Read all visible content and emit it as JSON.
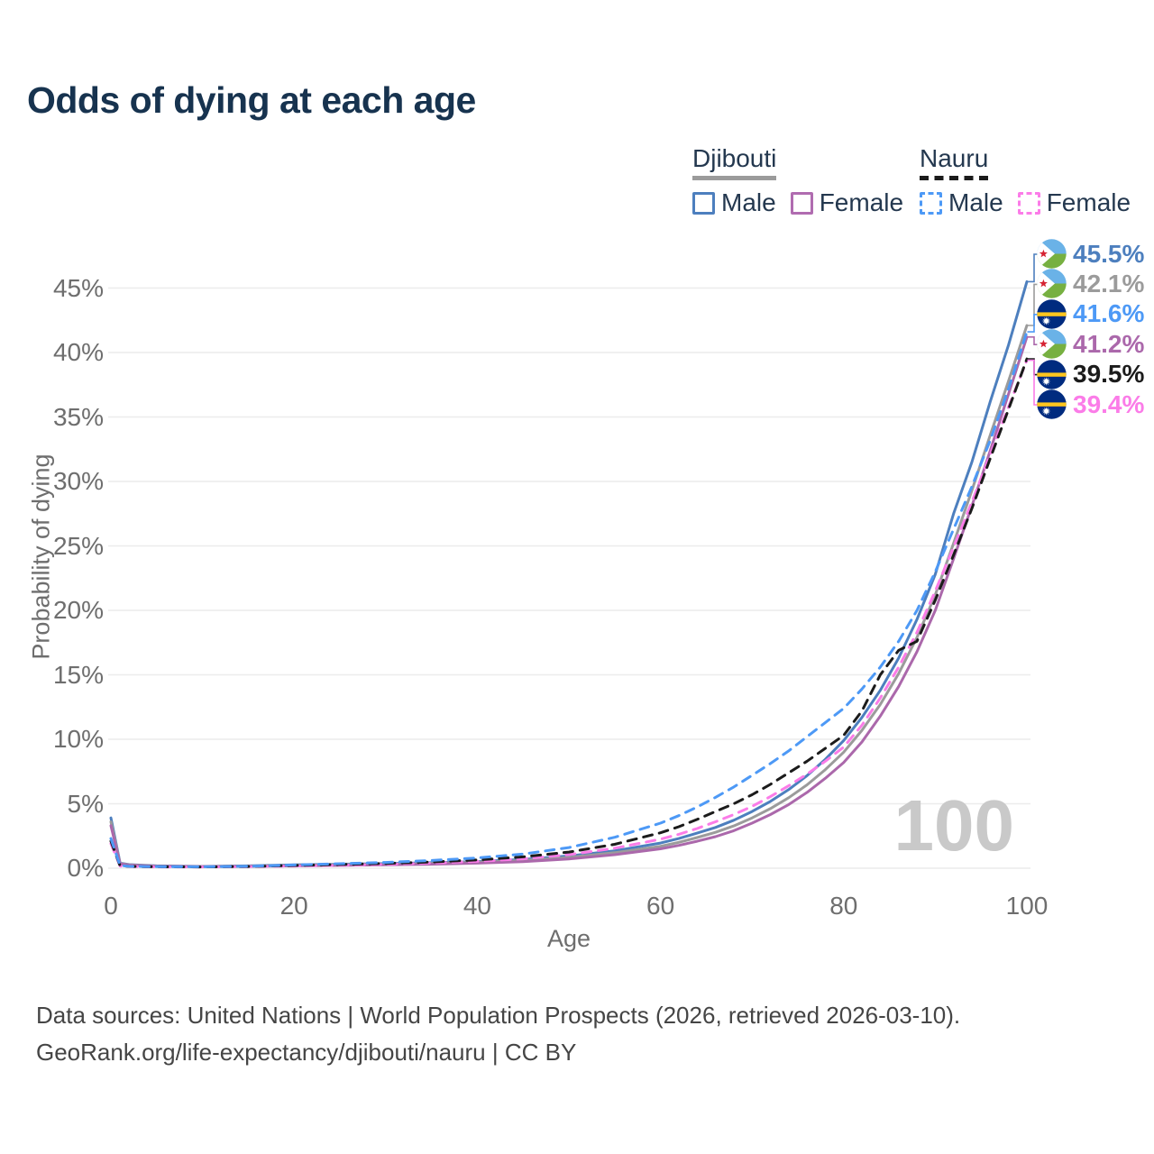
{
  "title": "Odds of dying at each age",
  "watermark": "100",
  "legend": {
    "groups": [
      {
        "label": "Djibouti",
        "line_style": "solid",
        "underline_color": "#9b9b9b",
        "items": [
          {
            "label": "Male",
            "color": "#4d7fbe",
            "dashed": false
          },
          {
            "label": "Female",
            "color": "#b06cb0",
            "dashed": false
          }
        ]
      },
      {
        "label": "Nauru",
        "line_style": "dashed",
        "underline_color": "#1b1b1b",
        "items": [
          {
            "label": "Male",
            "color": "#4d99f6",
            "dashed": true
          },
          {
            "label": "Female",
            "color": "#fb7ce8",
            "dashed": true
          }
        ]
      }
    ]
  },
  "footer": {
    "line1": "Data sources: United Nations | World Population Prospects (2026, retrieved 2026-03-10).",
    "line2": "GeoRank.org/life-expectancy/djibouti/nauru | CC BY"
  },
  "chart_data": {
    "type": "line",
    "title": "Odds of dying at each age",
    "xlabel": "Age",
    "ylabel": "Probability of dying",
    "xlim": [
      0,
      100
    ],
    "ylim": [
      0,
      47.5
    ],
    "grid": "horizontal",
    "legend_position": "top-right",
    "x_ticks": [
      "0",
      "20",
      "40",
      "60",
      "80",
      "100"
    ],
    "y_ticks": [
      "0%",
      "5%",
      "10%",
      "15%",
      "20%",
      "25%",
      "30%",
      "35%",
      "40%",
      "45%"
    ],
    "x": [
      0,
      1,
      2,
      5,
      10,
      15,
      20,
      25,
      30,
      35,
      40,
      45,
      50,
      55,
      60,
      62,
      64,
      66,
      68,
      70,
      72,
      74,
      76,
      78,
      80,
      82,
      84,
      86,
      88,
      90,
      92,
      94,
      96,
      98,
      100
    ],
    "series": [
      {
        "name": "Djibouti Male",
        "country": "Djibouti",
        "sex": "male",
        "color": "#4d7fbe",
        "dashed": false,
        "flag": "dj",
        "end_label": "45.5%",
        "values": [
          3.9,
          0.4,
          0.28,
          0.18,
          0.14,
          0.18,
          0.26,
          0.31,
          0.36,
          0.43,
          0.52,
          0.68,
          0.95,
          1.35,
          1.95,
          2.3,
          2.72,
          3.16,
          3.72,
          4.4,
          5.18,
          6.1,
          7.18,
          8.45,
          9.9,
          11.7,
          13.8,
          16.3,
          19.3,
          22.8,
          27.5,
          31.5,
          36.2,
          40.6,
          45.5
        ]
      },
      {
        "name": "Djibouti",
        "country": "Djibouti",
        "sex": "both",
        "color": "#9b9b9b",
        "dashed": false,
        "flag": "dj",
        "end_label": "42.1%",
        "values": [
          3.6,
          0.37,
          0.26,
          0.16,
          0.13,
          0.16,
          0.22,
          0.27,
          0.31,
          0.37,
          0.46,
          0.6,
          0.83,
          1.2,
          1.7,
          2.01,
          2.38,
          2.78,
          3.28,
          3.9,
          4.62,
          5.47,
          6.47,
          7.65,
          9.0,
          10.7,
          12.7,
          15.1,
          17.9,
          21.2,
          25.2,
          29.3,
          33.6,
          37.8,
          42.1
        ]
      },
      {
        "name": "Djibouti Female",
        "country": "Djibouti",
        "sex": "female",
        "color": "#ab68ab",
        "dashed": false,
        "flag": "dj",
        "end_label": "41.2%",
        "values": [
          3.3,
          0.34,
          0.24,
          0.15,
          0.12,
          0.14,
          0.18,
          0.22,
          0.26,
          0.31,
          0.39,
          0.51,
          0.72,
          1.05,
          1.5,
          1.77,
          2.09,
          2.45,
          2.91,
          3.5,
          4.16,
          4.94,
          5.88,
          6.98,
          8.2,
          9.8,
          11.8,
          14.1,
          16.8,
          20.0,
          24.0,
          28.1,
          32.4,
          36.8,
          41.2
        ]
      },
      {
        "name": "Nauru Female",
        "country": "Nauru",
        "sex": "female",
        "color": "#fb7ce8",
        "dashed": true,
        "flag": "nr",
        "end_label": "39.4%",
        "values": [
          1.9,
          0.16,
          0.13,
          0.1,
          0.1,
          0.12,
          0.17,
          0.23,
          0.3,
          0.4,
          0.53,
          0.73,
          1.05,
          1.55,
          2.25,
          2.63,
          3.08,
          3.6,
          4.16,
          4.8,
          5.55,
          6.4,
          7.3,
          8.3,
          9.4,
          11.1,
          13.2,
          15.6,
          18.3,
          21.5,
          24.9,
          28.4,
          32.1,
          35.8,
          39.4
        ]
      },
      {
        "name": "Nauru",
        "country": "Nauru",
        "sex": "both",
        "color": "#1b1b1b",
        "dashed": true,
        "flag": "nr",
        "end_label": "39.5%",
        "values": [
          2.1,
          0.18,
          0.14,
          0.11,
          0.1,
          0.13,
          0.21,
          0.29,
          0.37,
          0.48,
          0.64,
          0.88,
          1.25,
          1.85,
          2.75,
          3.22,
          3.78,
          4.4,
          5.0,
          5.7,
          6.5,
          7.4,
          8.3,
          9.3,
          10.3,
          12.2,
          15.0,
          16.9,
          17.6,
          20.8,
          24.3,
          27.9,
          31.8,
          35.6,
          39.5
        ]
      },
      {
        "name": "Nauru Male",
        "country": "Nauru",
        "sex": "male",
        "color": "#4d99f6",
        "dashed": true,
        "flag": "nr",
        "end_label": "41.6%",
        "values": [
          2.3,
          0.2,
          0.15,
          0.12,
          0.11,
          0.15,
          0.25,
          0.35,
          0.45,
          0.6,
          0.8,
          1.1,
          1.6,
          2.4,
          3.5,
          4.08,
          4.74,
          5.5,
          6.3,
          7.2,
          8.12,
          9.1,
          10.2,
          11.3,
          12.4,
          13.9,
          15.6,
          17.6,
          20.0,
          23.0,
          26.3,
          29.6,
          33.2,
          37.2,
          41.6
        ]
      }
    ]
  }
}
